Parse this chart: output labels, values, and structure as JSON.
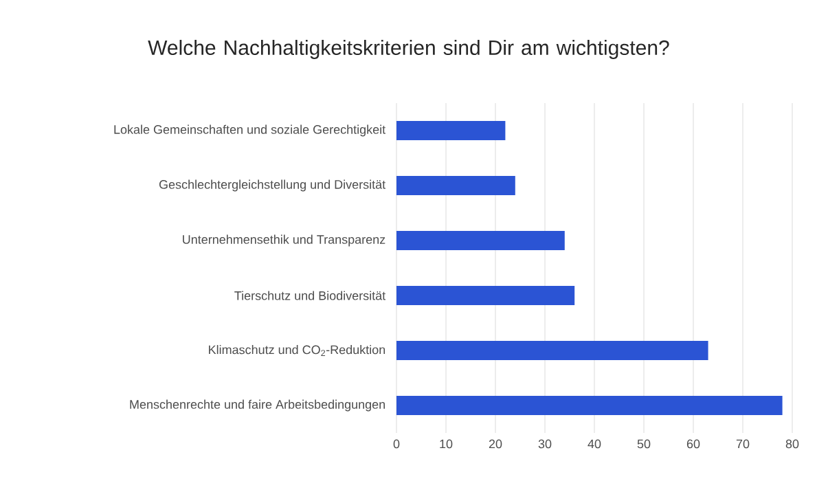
{
  "chart_data": {
    "type": "bar",
    "orientation": "horizontal",
    "title": "Welche Nachhaltigkeitskriterien sind Dir am wichtigsten?",
    "categories": [
      "Lokale Gemeinschaften und soziale Gerechtigkeit",
      "Geschlechtergleichstellung und Diversität",
      "Unternehmensethik und Transparenz",
      "Tierschutz und Biodiversität",
      "Klimaschutz und CO$_{2}$-Reduktion",
      "Menschenrechte und faire Arbeitsbedingungen"
    ],
    "values": [
      22,
      24,
      34,
      36,
      63,
      78
    ],
    "color": "#2b54d4",
    "xlim": [
      0,
      80
    ],
    "xticks": [
      0,
      10,
      20,
      30,
      40,
      50,
      60,
      70,
      80
    ],
    "grid": "x"
  }
}
